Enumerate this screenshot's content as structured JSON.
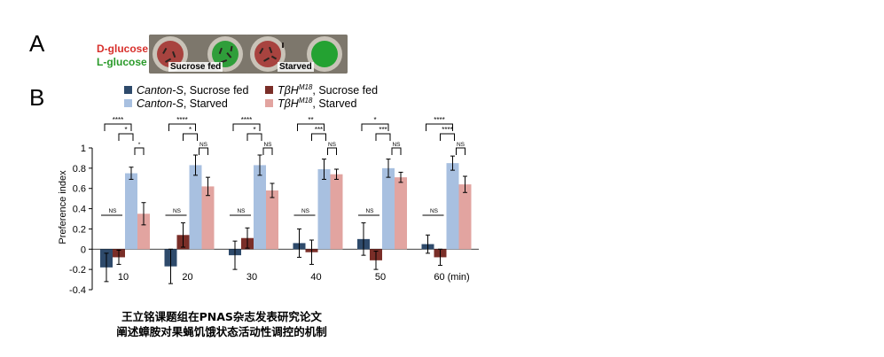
{
  "panel_labels": {
    "a": "A",
    "b": "B"
  },
  "panel_a": {
    "d_glucose": "D-glucose",
    "l_glucose": "L-glucose",
    "sucrose_fed": "Sucrose fed",
    "starved": "Starved",
    "colors": {
      "d_glucose": "#d8302c",
      "l_glucose": "#2a9a2a"
    }
  },
  "chart_data": {
    "type": "bar",
    "ylabel": "Preference index",
    "ylim": [
      -0.4,
      1
    ],
    "yticks": [
      "1",
      "0.8",
      "0.6",
      "0.4",
      "0.2",
      "0",
      "-0.2",
      "-0.4"
    ],
    "categories": [
      "10",
      "20",
      "30",
      "40",
      "50",
      "60 (min)"
    ],
    "legend": [
      {
        "genotype": "Canton-S",
        "condition": ", Sucrose fed",
        "color": "#2e4a6b"
      },
      {
        "genotype": "TβH",
        "sup": "M18",
        "condition": ", Sucrose fed",
        "color": "#7a2e28"
      },
      {
        "genotype": "Canton-S",
        "condition": ", Starved",
        "color": "#a8c0e0"
      },
      {
        "genotype": "TβH",
        "sup": "M18",
        "condition": ", Starved",
        "color": "#e2a4a0"
      }
    ],
    "series": [
      {
        "name": "Canton-S, Sucrose fed",
        "values": [
          -0.18,
          -0.17,
          -0.06,
          0.06,
          0.1,
          0.05
        ],
        "errors": [
          0.14,
          0.17,
          0.14,
          0.14,
          0.16,
          0.09
        ],
        "color": "#2e4a6b"
      },
      {
        "name": "TβH M18, Sucrose fed",
        "values": [
          -0.08,
          0.14,
          0.11,
          -0.03,
          -0.11,
          -0.08
        ],
        "errors": [
          0.07,
          0.12,
          0.1,
          0.12,
          0.09,
          0.08
        ],
        "color": "#7a2e28"
      },
      {
        "name": "Canton-S, Starved",
        "values": [
          0.75,
          0.83,
          0.83,
          0.79,
          0.8,
          0.85
        ],
        "errors": [
          0.06,
          0.1,
          0.1,
          0.1,
          0.09,
          0.07
        ],
        "color": "#a8c0e0"
      },
      {
        "name": "TβH M18, Starved",
        "values": [
          0.35,
          0.62,
          0.58,
          0.74,
          0.71,
          0.64
        ],
        "errors": [
          0.11,
          0.09,
          0.07,
          0.05,
          0.05,
          0.08
        ],
        "color": "#e2a4a0"
      }
    ],
    "significance": [
      {
        "outer": "****",
        "middle": "*",
        "inner": "*",
        "ns_low": "NS",
        "ns_high": ""
      },
      {
        "outer": "****",
        "middle": "*",
        "inner": "NS",
        "ns_low": "NS",
        "ns_high": ""
      },
      {
        "outer": "****",
        "middle": "*",
        "inner": "NS",
        "ns_low": "NS",
        "ns_high": ""
      },
      {
        "outer": "**",
        "middle": "***",
        "inner": "NS",
        "ns_low": "NS",
        "ns_high": ""
      },
      {
        "outer": "*",
        "middle": "***",
        "inner": "NS",
        "ns_low": "NS",
        "ns_high": ""
      },
      {
        "outer": "****",
        "middle": "****",
        "inner": "NS",
        "ns_low": "NS",
        "ns_high": ""
      }
    ]
  },
  "caption": {
    "line1": "王立铭课题组在PNAS杂志发表研究论文",
    "line2": "阐述蟑胺对果蝇饥饿状态活动性调控的机制"
  }
}
